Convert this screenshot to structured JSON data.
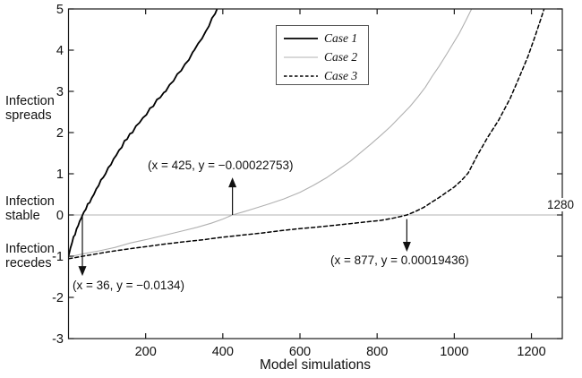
{
  "labels": {
    "axis_end": "1280",
    "side": [
      {
        "text": "Infection\nspreads"
      },
      {
        "text": "Infection\nstable"
      },
      {
        "text": "Infection\nrecedes"
      }
    ]
  },
  "chart_data": {
    "type": "line",
    "title": "",
    "xlabel": "Model simulations",
    "ylabel": "",
    "xlim": [
      0,
      1280
    ],
    "ylim": [
      -3,
      5
    ],
    "xticks": [
      200,
      400,
      600,
      800,
      1000,
      1200
    ],
    "yticks": [
      -3,
      -2,
      -1,
      0,
      1,
      2,
      3,
      4,
      5
    ],
    "grid": false,
    "zero_line": {
      "y": 0,
      "color": "#b3b3b3"
    },
    "axis_color": "#1a1a1a",
    "legend_position": "top-center",
    "series": [
      {
        "name": "Case 1",
        "color": "#000000",
        "width": 1.8,
        "dash": "solid",
        "zero_crossing": {
          "x": 36,
          "y": -0.0134
        },
        "points": [
          [
            1,
            -0.97
          ],
          [
            5,
            -0.8
          ],
          [
            9,
            -0.68
          ],
          [
            13,
            -0.53
          ],
          [
            17,
            -0.48
          ],
          [
            21,
            -0.34
          ],
          [
            25,
            -0.26
          ],
          [
            29,
            -0.15
          ],
          [
            33,
            -0.08
          ],
          [
            36,
            -0.01
          ],
          [
            40,
            0.07
          ],
          [
            45,
            0.14
          ],
          [
            50,
            0.27
          ],
          [
            55,
            0.3
          ],
          [
            60,
            0.41
          ],
          [
            66,
            0.5
          ],
          [
            72,
            0.63
          ],
          [
            78,
            0.71
          ],
          [
            84,
            0.85
          ],
          [
            90,
            0.91
          ],
          [
            96,
            1.0
          ],
          [
            103,
            1.15
          ],
          [
            110,
            1.22
          ],
          [
            117,
            1.36
          ],
          [
            124,
            1.45
          ],
          [
            131,
            1.57
          ],
          [
            138,
            1.64
          ],
          [
            145,
            1.8
          ],
          [
            152,
            1.84
          ],
          [
            159,
            1.97
          ],
          [
            166,
            2.0
          ],
          [
            175,
            2.16
          ],
          [
            184,
            2.24
          ],
          [
            193,
            2.36
          ],
          [
            202,
            2.43
          ],
          [
            211,
            2.59
          ],
          [
            220,
            2.64
          ],
          [
            229,
            2.8
          ],
          [
            238,
            2.85
          ],
          [
            247,
            2.97
          ],
          [
            252,
            3.0
          ],
          [
            262,
            3.16
          ],
          [
            272,
            3.25
          ],
          [
            282,
            3.42
          ],
          [
            292,
            3.5
          ],
          [
            302,
            3.66
          ],
          [
            312,
            3.76
          ],
          [
            322,
            3.95
          ],
          [
            326,
            4.0
          ],
          [
            336,
            4.16
          ],
          [
            346,
            4.28
          ],
          [
            356,
            4.46
          ],
          [
            364,
            4.58
          ],
          [
            372,
            4.78
          ],
          [
            380,
            4.88
          ],
          [
            386,
            5.02
          ],
          [
            390,
            5.15
          ]
        ]
      },
      {
        "name": "Case 2",
        "color": "#b0b0b0",
        "width": 1.1,
        "dash": "solid",
        "zero_crossing": {
          "x": 425,
          "y": -0.00022753
        },
        "points": [
          [
            1,
            -1.02
          ],
          [
            40,
            -0.94
          ],
          [
            80,
            -0.87
          ],
          [
            120,
            -0.79
          ],
          [
            160,
            -0.68
          ],
          [
            200,
            -0.6
          ],
          [
            245,
            -0.5
          ],
          [
            290,
            -0.4
          ],
          [
            333,
            -0.3
          ],
          [
            370,
            -0.2
          ],
          [
            400,
            -0.1
          ],
          [
            425,
            0
          ],
          [
            455,
            0.08
          ],
          [
            479,
            0.15
          ],
          [
            520,
            0.27
          ],
          [
            558,
            0.39
          ],
          [
            600,
            0.55
          ],
          [
            635,
            0.72
          ],
          [
            670,
            0.91
          ],
          [
            704,
            1.13
          ],
          [
            730,
            1.3
          ],
          [
            758,
            1.52
          ],
          [
            785,
            1.73
          ],
          [
            813,
            1.96
          ],
          [
            835,
            2.15
          ],
          [
            860,
            2.39
          ],
          [
            885,
            2.63
          ],
          [
            906,
            2.87
          ],
          [
            925,
            3.1
          ],
          [
            943,
            3.37
          ],
          [
            960,
            3.6
          ],
          [
            978,
            3.87
          ],
          [
            995,
            4.13
          ],
          [
            1013,
            4.41
          ],
          [
            1030,
            4.72
          ],
          [
            1045,
            5.0
          ],
          [
            1050,
            5.15
          ]
        ]
      },
      {
        "name": "Case 3",
        "color": "#000000",
        "width": 1.5,
        "dash": "dashed",
        "zero_crossing": {
          "x": 877,
          "y": 0.00019436
        },
        "points": [
          [
            1,
            -1.06
          ],
          [
            50,
            -0.98
          ],
          [
            100,
            -0.9
          ],
          [
            150,
            -0.83
          ],
          [
            200,
            -0.77
          ],
          [
            245,
            -0.71
          ],
          [
            300,
            -0.65
          ],
          [
            350,
            -0.6
          ],
          [
            400,
            -0.54
          ],
          [
            450,
            -0.49
          ],
          [
            500,
            -0.44
          ],
          [
            550,
            -0.38
          ],
          [
            600,
            -0.33
          ],
          [
            650,
            -0.29
          ],
          [
            690,
            -0.25
          ],
          [
            730,
            -0.21
          ],
          [
            770,
            -0.17
          ],
          [
            810,
            -0.13
          ],
          [
            840,
            -0.08
          ],
          [
            860,
            -0.04
          ],
          [
            877,
            0
          ],
          [
            900,
            0.09
          ],
          [
            920,
            0.18
          ],
          [
            940,
            0.3
          ],
          [
            960,
            0.42
          ],
          [
            980,
            0.55
          ],
          [
            1000,
            0.68
          ],
          [
            1020,
            0.85
          ],
          [
            1036,
            1.02
          ],
          [
            1060,
            1.45
          ],
          [
            1087,
            1.89
          ],
          [
            1115,
            2.3
          ],
          [
            1145,
            2.83
          ],
          [
            1168,
            3.33
          ],
          [
            1191,
            3.85
          ],
          [
            1210,
            4.35
          ],
          [
            1226,
            4.8
          ],
          [
            1238,
            5.15
          ]
        ]
      }
    ],
    "annotations": [
      {
        "text": "(x = 425, y = −0.00022753)",
        "x": 425,
        "y": -0.00022753,
        "arrow": {
          "x": 425,
          "from_y": 0.0,
          "to_y": 0.91,
          "dir": "up"
        }
      },
      {
        "text": "(x = 36, y = −0.0134)",
        "x": 36,
        "y": -0.0134,
        "arrow": {
          "x": 36,
          "from_y": 0.0,
          "to_y": -1.48,
          "dir": "down"
        }
      },
      {
        "text": "(x = 877, y = 0.00019436)",
        "x": 877,
        "y": 0.00019436,
        "arrow": {
          "x": 877,
          "from_y": -0.1,
          "to_y": -0.89,
          "dir": "down"
        }
      }
    ]
  }
}
